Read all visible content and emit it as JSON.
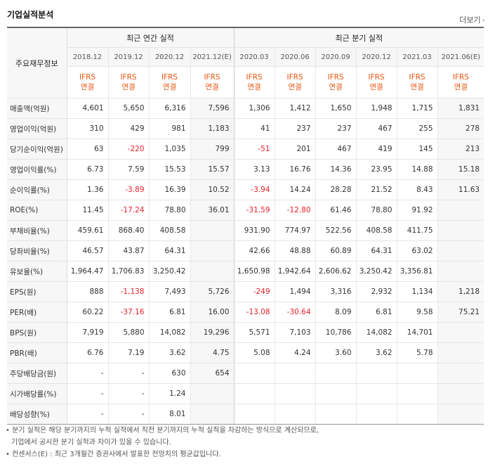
{
  "title": "기업실적분석",
  "more_label": "더보기",
  "header": {
    "row_label": "주요재무정보",
    "annual_group": "최근 연간 실적",
    "quarter_group": "최근 분기 실적",
    "periods": [
      "2018.12",
      "2019.12",
      "2020.12",
      "2021.12(E)",
      "2020.03",
      "2020.06",
      "2020.09",
      "2020.12",
      "2021.03",
      "2021.06(E)"
    ],
    "basis_line1": "IFRS",
    "basis_line2": "연결"
  },
  "rows": [
    {
      "label": "매출액(억원)",
      "values": [
        "4,601",
        "5,650",
        "6,316",
        "7,596",
        "1,306",
        "1,412",
        "1,650",
        "1,948",
        "1,715",
        "1,831"
      ]
    },
    {
      "label": "영업이익(억원)",
      "values": [
        "310",
        "429",
        "981",
        "1,183",
        "41",
        "237",
        "237",
        "467",
        "255",
        "278"
      ]
    },
    {
      "label": "당기순이익(억원)",
      "values": [
        "63",
        "-220",
        "1,035",
        "799",
        "-51",
        "201",
        "467",
        "419",
        "145",
        "213"
      ]
    },
    {
      "label": "영업이익률(%)",
      "values": [
        "6.73",
        "7.59",
        "15.53",
        "15.57",
        "3.13",
        "16.76",
        "14.36",
        "23.95",
        "14.88",
        "15.18"
      ]
    },
    {
      "label": "순이익률(%)",
      "values": [
        "1.36",
        "-3.89",
        "16.39",
        "10.52",
        "-3.94",
        "14.24",
        "28.28",
        "21.52",
        "8.43",
        "11.63"
      ]
    },
    {
      "label": "ROE(%)",
      "values": [
        "11.45",
        "-17.24",
        "78.80",
        "36.01",
        "-31.59",
        "-12.80",
        "61.46",
        "78.80",
        "91.92",
        ""
      ]
    },
    {
      "label": "부채비율(%)",
      "values": [
        "459.61",
        "868.40",
        "408.58",
        "",
        "931.90",
        "774.97",
        "522.56",
        "408.58",
        "411.75",
        ""
      ]
    },
    {
      "label": "당좌비율(%)",
      "values": [
        "46.57",
        "43.87",
        "64.31",
        "",
        "42.66",
        "48.88",
        "60.89",
        "64.31",
        "63.02",
        ""
      ]
    },
    {
      "label": "유보율(%)",
      "values": [
        "1,964.47",
        "1,706.83",
        "3,250.42",
        "",
        "1,650.98",
        "1,942.64",
        "2,606.62",
        "3,250.42",
        "3,356.81",
        ""
      ]
    },
    {
      "label": "EPS(원)",
      "values": [
        "888",
        "-1,138",
        "7,493",
        "5,726",
        "-249",
        "1,494",
        "3,316",
        "2,932",
        "1,134",
        "1,218"
      ]
    },
    {
      "label": "PER(배)",
      "values": [
        "60.22",
        "-37.16",
        "6.81",
        "16.00",
        "-13.08",
        "-30.64",
        "8.09",
        "6.81",
        "9.58",
        "75.21"
      ]
    },
    {
      "label": "BPS(원)",
      "values": [
        "7,919",
        "5,880",
        "14,082",
        "19,296",
        "5,571",
        "7,103",
        "10,786",
        "14,082",
        "14,701",
        ""
      ]
    },
    {
      "label": "PBR(배)",
      "values": [
        "6.76",
        "7.19",
        "3.62",
        "4.75",
        "5.08",
        "4.24",
        "3.60",
        "3.62",
        "5.78",
        ""
      ]
    },
    {
      "label": "주당배당금(원)",
      "values": [
        "-",
        "-",
        "630",
        "654",
        "",
        "",
        "",
        "",
        "",
        ""
      ]
    },
    {
      "label": "시가배당률(%)",
      "values": [
        "-",
        "-",
        "1.24",
        "",
        "",
        "",
        "",
        "",
        "",
        ""
      ]
    },
    {
      "label": "배당성향(%)",
      "values": [
        "-",
        "-",
        "8.01",
        "",
        "",
        "",
        "",
        "",
        "",
        ""
      ]
    }
  ],
  "notes": {
    "line1": "• 분기 실적은 해당 분기까지의 누적 실적에서 직전 분기까지의 누적 실적을 차감하는 방식으로 계산되므로,",
    "line2": "기업에서 공시한 분기 실적과 차이가 있을 수 있습니다.",
    "line3": "• 컨센서스(E) : 최근 3개월간 증권사에서 발표한 전망치의 평균값입니다."
  }
}
